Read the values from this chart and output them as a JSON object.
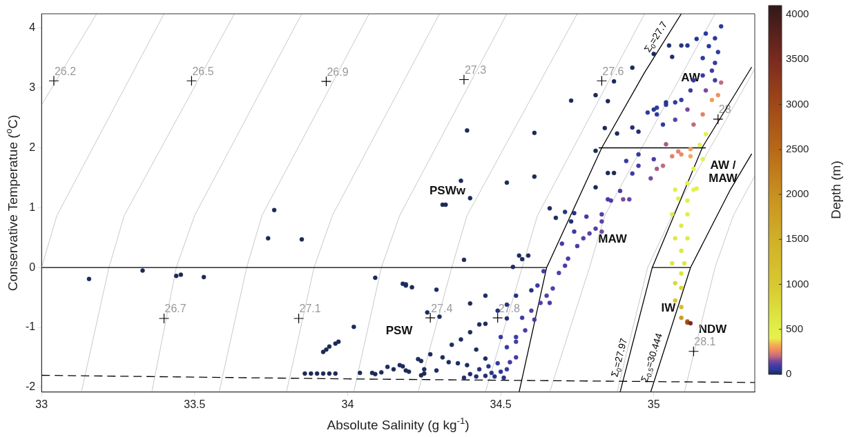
{
  "chart_data": {
    "type": "scatter",
    "xlabel": "Absolute Salinity (g kg$^{-1}$)",
    "ylabel": "Conservative Temperatue ($^{o}$C)",
    "clabel": "Depth (m)",
    "clim": [
      0,
      4100
    ],
    "cticks": [
      0,
      500,
      1000,
      1500,
      2000,
      2500,
      3000,
      3500,
      4000
    ],
    "xlim": [
      33,
      35.33
    ],
    "ylim": [
      -2.08,
      4.24
    ],
    "xticks": [
      33,
      33.5,
      34,
      34.5,
      35
    ],
    "yticks": [
      -2,
      -1,
      0,
      1,
      2,
      3,
      4
    ],
    "annotations": [
      {
        "text": "26.2",
        "x": 33.04,
        "y": 3.12
      },
      {
        "text": "26.5",
        "x": 33.49,
        "y": 3.12
      },
      {
        "text": "26.9",
        "x": 33.93,
        "y": 3.11
      },
      {
        "text": "27.3",
        "x": 34.38,
        "y": 3.14
      },
      {
        "text": "27.6",
        "x": 34.83,
        "y": 3.12
      },
      {
        "text": "28",
        "x": 35.21,
        "y": 2.48
      },
      {
        "text": "26.7",
        "x": 33.4,
        "y": -0.85
      },
      {
        "text": "27.1",
        "x": 33.84,
        "y": -0.85
      },
      {
        "text": "27.4",
        "x": 34.27,
        "y": -0.84
      },
      {
        "text": "27.8",
        "x": 34.49,
        "y": -0.84
      },
      {
        "text": "28.1",
        "x": 35.13,
        "y": -1.4
      },
      "AW",
      "PSWw",
      "MAW",
      "AW /\nMAW",
      "IW",
      "NDW",
      "PSW"
    ],
    "series": [
      {
        "type": "line",
        "color": "#c8c8c8",
        "x": [
          33.18,
          33.0
        ],
        "values": [
          4.24,
          2.72
        ]
      },
      {
        "type": "line",
        "color": "#c8c8c8",
        "x": [
          33.4,
          33.05,
          33.0
        ],
        "values": [
          4.24,
          0.87,
          0
        ]
      },
      {
        "type": "line",
        "color": "#c8c8c8",
        "x": [
          33.63,
          33.27,
          33.22,
          33.13
        ],
        "values": [
          4.24,
          0.87,
          0,
          -2.08
        ]
      },
      {
        "type": "line",
        "color": "#c8c8c8",
        "x": [
          33.85,
          33.5,
          33.44,
          33.36
        ],
        "values": [
          4.24,
          0.87,
          0,
          -2.08
        ]
      },
      {
        "type": "line",
        "color": "#c8c8c8",
        "x": [
          34.07,
          33.72,
          33.67,
          33.58
        ],
        "values": [
          4.24,
          0.87,
          0,
          -2.08
        ]
      },
      {
        "type": "line",
        "color": "#c8c8c8",
        "x": [
          34.3,
          33.95,
          33.89,
          33.8
        ],
        "values": [
          4.24,
          0.87,
          0,
          -2.08
        ]
      },
      {
        "type": "line",
        "color": "#c8c8c8",
        "x": [
          34.52,
          34.17,
          34.11,
          34.02
        ],
        "values": [
          4.24,
          0.87,
          0,
          -2.08
        ]
      },
      {
        "type": "line",
        "color": "#c8c8c8",
        "x": [
          34.75,
          34.39,
          34.34,
          34.23
        ],
        "values": [
          4.24,
          0.87,
          0,
          -2.08
        ]
      },
      {
        "type": "line",
        "color": "#c8c8c8",
        "x": [
          34.97,
          34.62,
          34.57,
          34.45
        ],
        "values": [
          4.24,
          0.87,
          0,
          -2.08
        ]
      },
      {
        "type": "line",
        "color": "#c8c8c8",
        "x": [
          35.2,
          34.84,
          34.79,
          34.66
        ],
        "values": [
          4.24,
          0.87,
          0,
          -2.08
        ]
      },
      {
        "type": "line",
        "color": "#c8c8c8",
        "x": [
          35.33,
          35.06,
          34.98,
          34.88
        ],
        "values": [
          3.32,
          0.87,
          0,
          -2.08
        ]
      },
      {
        "type": "line",
        "color": "#c8c8c8",
        "x": [
          35.33,
          35.26,
          35.2,
          35.1
        ],
        "values": [
          1.53,
          0.87,
          0,
          -2.08
        ]
      },
      {
        "type": "line",
        "name": "Σ$_{0}$=27.7",
        "color": "#000000",
        "line_style": "solid",
        "x": [
          35.09,
          34.97,
          34.83,
          34.65,
          34.56
        ],
        "values": [
          4.24,
          3.26,
          2.0,
          0,
          -2.08
        ]
      },
      {
        "type": "line",
        "name": "Σ$_{0}$=27.97",
        "color": "#000000",
        "line_style": "solid",
        "x": [
          34.89,
          34.995,
          35.16,
          35.32
        ],
        "values": [
          -2.08,
          0,
          2.02,
          3.35
        ]
      },
      {
        "type": "line",
        "name": "Σ$_{0.5}$=30.444",
        "color": "#000000",
        "line_style": "solid",
        "x": [
          34.99,
          35.12,
          35.25,
          35.32
        ],
        "values": [
          -2.08,
          0,
          1.3,
          1.9
        ]
      },
      {
        "type": "line",
        "color": "#000000",
        "line_style": "solid",
        "x": [
          34.82,
          35.17
        ],
        "values": [
          2,
          2
        ]
      },
      {
        "type": "line",
        "color": "#000000",
        "line_style": "solid",
        "x": [
          33,
          34.65
        ],
        "values": [
          0,
          0
        ]
      },
      {
        "type": "line",
        "color": "#000000",
        "line_style": "solid",
        "x": [
          34.995,
          35.12
        ],
        "values": [
          0,
          0
        ]
      },
      {
        "type": "line",
        "color": "#000000",
        "line_style": "dashed",
        "x": [
          33,
          34,
          35.33
        ],
        "values": [
          -1.8,
          -1.86,
          -1.92
        ]
      },
      {
        "type": "scatter",
        "marker": "cross",
        "color": "#000000",
        "x": [
          33.04,
          33.49,
          33.93,
          34.38,
          34.83,
          35.21,
          33.4,
          33.84,
          34.27,
          34.49,
          35.13
        ],
        "values": [
          3.12,
          3.12,
          3.11,
          3.14,
          3.12,
          2.48,
          -0.85,
          -0.85,
          -0.84,
          -0.84,
          -1.4
        ]
      },
      {
        "type": "scatter",
        "marker": "circle",
        "colors": [
          "#1c2a57",
          "#1c2a57",
          "#1c2a57",
          "#1c2a57",
          "#1c2a57",
          "#1c2a57",
          "#1c2a57",
          "#1c2a57",
          "#1c2a57",
          "#1c2a57",
          "#1c2a57",
          "#1c2a57",
          "#1c2a57",
          "#1c2a57",
          "#1c2a57",
          "#1c2a57",
          "#1c2a57",
          "#1c2a57",
          "#1c2a57",
          "#1c2a57",
          "#1c2a57",
          "#1c2a57",
          "#1c2a57",
          "#1c2a57",
          "#1c2a57",
          "#1c2a57",
          "#1c2a57",
          "#1c2a57",
          "#1c2a57",
          "#1c2a57",
          "#1c2a57",
          "#1c2a57",
          "#1c2a57",
          "#1c2a57",
          "#1c2a57",
          "#1c2a57",
          "#1c2a57",
          "#1c2a57",
          "#1c2a57",
          "#1c2a57",
          "#1c2a57",
          "#1c2a57",
          "#1c2a57",
          "#202f6e",
          "#202f6e",
          "#1c2a57",
          "#1c2a57",
          "#1c2a57",
          "#1c2a57",
          "#1c2a57",
          "#1c2a57",
          "#1c2a57",
          "#1c2a57",
          "#1c2a57",
          "#1c2a57",
          "#1d2c5f",
          "#1d2c5f",
          "#24337c",
          "#24337c",
          "#202f6e",
          "#1d2c5f",
          "#1d2c5f",
          "#1d2c5f",
          "#1d2c5f",
          "#1d2c5f",
          "#1d2c5f",
          "#1d2c5f",
          "#1d2c5f",
          "#1d2c5f",
          "#1d2c5f",
          "#1d2c5f",
          "#1d2c5f",
          "#24337c",
          "#24337c",
          "#202f6e",
          "#24337c",
          "#24337c",
          "#1d2c5f",
          "#1d2c5f",
          "#1d2c5f",
          "#1d2c5f",
          "#1d2c5f",
          "#1d2c5f",
          "#1d2c5f",
          "#1d2c5f",
          "#1d2c5f",
          "#1d2c5f",
          "#1d2c5f",
          "#1d2c5f",
          "#1d2c5f",
          "#1d2c5f",
          "#1d2c5f",
          "#1d2c5f",
          "#1d2c5f",
          "#1d2c5f",
          "#202f6e",
          "#202f6e",
          "#202f6e",
          "#24337c",
          "#27368b",
          "#24337c",
          "#27368b",
          "#2a3a9a",
          "#3d3aa2",
          "#443aa5",
          "#1f2d66",
          "#27368b",
          "#373aa0",
          "#303a9d",
          "#4a3aa8",
          "#4a3aa8",
          "#543da5",
          "#543da5",
          "#543da5",
          "#543da5",
          "#443aa5",
          "#543da5",
          "#4a3aa8",
          "#4a3aa8",
          "#4a3aa8",
          "#543da5",
          "#5d40a2",
          "#543da5",
          "#5d40a2",
          "#543da5",
          "#4a3aa8",
          "#7a4a9a",
          "#6744a0",
          "#7a4a9a",
          "#3d3aa2",
          "#443aa5",
          "#4a3aa8",
          "#3d3aa2",
          "#303a9d",
          "#373aa0",
          "#443aa5",
          "#3d3aa2",
          "#443aa5",
          "#3d3aa2",
          "#4a3aa8",
          "#4a3aa8",
          "#3d3aa2",
          "#443aa5",
          "#7a4a9a",
          "#a45d8a",
          "#c06a80",
          "#e28169",
          "#f08a60",
          "#f39d58",
          "#303a9d",
          "#303a9d",
          "#303a9d",
          "#5d40a2",
          "#7a4a9a",
          "#c06a80",
          "#e28169",
          "#f39d58",
          "#f1905d",
          "#c06a80",
          "#7a4a9a",
          "#2a3a9a",
          "#2a3a9a",
          "#2a3a9a",
          "#27368b",
          "#27368b",
          "#202f6e",
          "#202f6e",
          "#24337c",
          "#303a9d",
          "#373aa0",
          "#3d3aa2",
          "#3d3aa2",
          "#443aa5",
          "#303a9d",
          "#3d3aa2",
          "#373aa0",
          "#27368b",
          "#27368b",
          "#2a3a9a",
          "#303a9d",
          "#303a9d",
          "#303a9d",
          "#2a3a9a",
          "#303a9d",
          "#373aa0",
          "#4a3aa8",
          "#a45d8a",
          "#e28169",
          "#f4aa53",
          "#e4f04c",
          "#e3f04b",
          "#e2f04a",
          "#e2f04a",
          "#e0f048",
          "#e2f04a",
          "#e0f048",
          "#e0f048",
          "#e2f04a",
          "#dfec46",
          "#e0ee47",
          "#dee843",
          "#dfea44",
          "#dee441",
          "#dee441",
          "#dbd83a",
          "#dad437",
          "#d8c830",
          "#d5be2d",
          "#cb9d23",
          "#b86818",
          "#a04818",
          "#7a2a20",
          "#dfeb45",
          "#dee642",
          "#e5f04d",
          "#dde03e"
        ],
        "x": [
          33.155,
          33.33,
          33.44,
          33.455,
          33.53,
          33.74,
          33.76,
          33.85,
          34.09,
          34.19,
          34.21,
          34.02,
          33.92,
          33.93,
          33.94,
          33.96,
          33.97,
          33.86,
          33.88,
          33.9,
          33.92,
          33.94,
          33.96,
          34.04,
          34.08,
          34.09,
          34.11,
          34.15,
          34.18,
          34.19,
          34.25,
          34.24,
          34.24,
          34.39,
          34.61,
          34.73,
          34.81,
          34.85,
          34.87,
          34.93,
          35.0,
          34.84,
          34.88,
          34.93,
          34.95,
          34.81,
          34.37,
          34.52,
          34.61,
          34.4,
          34.85,
          34.87,
          34.81,
          34.32,
          34.31,
          34.66,
          34.68,
          34.71,
          34.74,
          34.73,
          34.38,
          34.56,
          34.57,
          34.59,
          34.54,
          34.18,
          34.19,
          34.29,
          34.45,
          34.4,
          34.3,
          34.26,
          34.6,
          34.55,
          34.52,
          34.49,
          34.52,
          34.31,
          34.34,
          34.37,
          34.4,
          34.43,
          34.45,
          34.27,
          34.23,
          34.13,
          34.17,
          34.2,
          34.25,
          34.29,
          34.33,
          34.36,
          34.39,
          34.42,
          34.45,
          34.38,
          34.42,
          34.45,
          34.48,
          34.51,
          34.43,
          34.46,
          34.5,
          34.53,
          34.55,
          34.4,
          34.47,
          34.52,
          34.49,
          34.55,
          34.58,
          34.6,
          34.63,
          34.65,
          34.67,
          34.64,
          34.69,
          34.71,
          34.72,
          34.75,
          34.77,
          34.79,
          34.81,
          34.83,
          34.83,
          34.85,
          34.9,
          34.92,
          34.83,
          34.55,
          34.61,
          34.66,
          34.57,
          34.5,
          34.52,
          34.7,
          34.74,
          34.78,
          34.62,
          34.86,
          34.89,
          34.93,
          34.95,
          34.99,
          35.01,
          35.03,
          35.06,
          35.09,
          35.12,
          34.98,
          35.01,
          35.04,
          35.07,
          35.11,
          35.13,
          35.16,
          35.19,
          35.21,
          35.22,
          35.17,
          35.22,
          35.17,
          35.2,
          35.14,
          35.11,
          35.05,
          35.06,
          35.09,
          35.16,
          35.2,
          35.16,
          35.19,
          35.2,
          35.13,
          35.12,
          35.09,
          35.04,
          35.0,
          35.01,
          35.03,
          35.07,
          35.21,
          35.18,
          34.95,
          34.91,
          35.0,
          35.04,
          35.08,
          35.12,
          35.17,
          35.16,
          35.13,
          35.11,
          35.08,
          35.14,
          35.11,
          35.07,
          35.13,
          35.06,
          35.11,
          35.07,
          35.11,
          35.06,
          35.1,
          35.07,
          35.09,
          35.07,
          35.09,
          35.09,
          35.11,
          35.11,
          35.12,
          35.09,
          35.09,
          35.15,
          35.09
        ],
        "values": [
          -0.19,
          -0.05,
          -0.14,
          -0.12,
          -0.16,
          0.49,
          0.96,
          0.47,
          -0.17,
          -0.3,
          -0.33,
          -0.99,
          -1.41,
          -1.37,
          -1.32,
          -1.27,
          -1.24,
          -1.77,
          -1.77,
          -1.77,
          -1.77,
          -1.77,
          -1.77,
          -1.76,
          -1.76,
          -1.78,
          -1.75,
          -1.7,
          -1.65,
          -1.72,
          -1.77,
          -1.56,
          -1.8,
          2.29,
          2.25,
          2.79,
          2.88,
          2.78,
          3.11,
          3.34,
          3.57,
          2.33,
          2.24,
          2.34,
          2.27,
          1.95,
          1.45,
          1.42,
          1.52,
          1.16,
          1.58,
          1.58,
          1.34,
          1.05,
          1.05,
          0.99,
          0.83,
          0.93,
          0.91,
          0.77,
          0.13,
          0.2,
          0.14,
          0.2,
          0.01,
          -0.27,
          -0.28,
          -0.37,
          -0.47,
          -0.6,
          -0.82,
          -0.75,
          -0.38,
          -0.47,
          -0.85,
          -0.72,
          -0.62,
          -1.5,
          -1.29,
          -1.2,
          -1.08,
          -0.95,
          -0.94,
          -1.45,
          -1.53,
          -1.66,
          -1.63,
          -1.74,
          -1.7,
          -1.72,
          -1.58,
          -1.6,
          -1.63,
          -1.37,
          -1.52,
          -1.84,
          -1.82,
          -1.81,
          -1.82,
          -1.84,
          -1.7,
          -1.65,
          -1.74,
          -1.58,
          -1.5,
          -1.78,
          -1.76,
          -1.7,
          -1.6,
          -1.24,
          -1.05,
          -0.72,
          -0.59,
          -0.47,
          -0.35,
          -0.06,
          -0.09,
          0.03,
          0.15,
          0.36,
          0.49,
          0.57,
          0.65,
          0.77,
          0.89,
          1.14,
          1.14,
          1.14,
          0.6,
          -1.16,
          -0.87,
          -0.59,
          -0.84,
          -1.16,
          -1.33,
          0.4,
          0.6,
          0.85,
          -0.3,
          1.12,
          1.28,
          1.57,
          1.7,
          1.49,
          1.65,
          1.7,
          1.86,
          1.89,
          1.98,
          2.59,
          2.67,
          2.72,
          2.47,
          2.64,
          2.39,
          2.56,
          2.8,
          2.88,
          3.09,
          2.96,
          4.03,
          3.91,
          3.83,
          3.82,
          3.71,
          3.71,
          3.52,
          3.71,
          3.5,
          3.42,
          3.21,
          3.29,
          3.13,
          3.13,
          2.96,
          2.8,
          2.76,
          2.64,
          2.56,
          2.39,
          2.76,
          3.6,
          3.7,
          1.89,
          1.78,
          1.81,
          2.06,
          1.94,
          1.86,
          2.23,
          1.81,
          1.65,
          1.41,
          1.15,
          1.32,
          1.12,
          1.3,
          1.3,
          0.89,
          0.89,
          0.49,
          0.49,
          0.07,
          0.07,
          -0.26,
          -0.34,
          -0.55,
          -0.66,
          -0.84,
          -0.9,
          -0.92,
          -0.93,
          0.7,
          0.28,
          2.05,
          -0.1
        ],
        "cvalues": [
          5,
          5,
          5,
          5,
          5,
          5,
          5,
          5,
          5,
          5,
          5,
          5,
          5,
          5,
          5,
          5,
          5,
          5,
          5,
          5,
          5,
          5,
          5,
          5,
          5,
          5,
          5,
          5,
          5,
          5,
          5,
          5,
          5,
          5,
          5,
          5,
          5,
          5,
          5,
          5,
          5,
          5,
          5,
          20,
          20,
          5,
          5,
          5,
          5,
          5,
          5,
          5,
          5,
          5,
          5,
          10,
          10,
          30,
          30,
          20,
          10,
          10,
          10,
          10,
          10,
          10,
          10,
          10,
          10,
          10,
          10,
          10,
          30,
          30,
          20,
          30,
          30,
          10,
          10,
          10,
          10,
          10,
          10,
          10,
          10,
          10,
          10,
          10,
          10,
          10,
          10,
          10,
          10,
          10,
          10,
          20,
          20,
          20,
          30,
          40,
          30,
          40,
          50,
          80,
          90,
          15,
          40,
          70,
          60,
          100,
          100,
          110,
          110,
          110,
          110,
          90,
          110,
          100,
          100,
          100,
          110,
          120,
          110,
          120,
          110,
          100,
          150,
          130,
          150,
          80,
          90,
          100,
          80,
          60,
          70,
          90,
          80,
          90,
          80,
          100,
          100,
          80,
          90,
          150,
          180,
          200,
          250,
          270,
          300,
          60,
          60,
          60,
          120,
          150,
          200,
          250,
          300,
          280,
          200,
          150,
          50,
          50,
          50,
          40,
          40,
          20,
          20,
          30,
          60,
          70,
          80,
          80,
          90,
          60,
          80,
          70,
          40,
          40,
          50,
          60,
          60,
          60,
          50,
          60,
          70,
          100,
          180,
          250,
          320,
          450,
          460,
          470,
          480,
          500,
          480,
          500,
          500,
          480,
          550,
          520,
          600,
          580,
          650,
          650,
          800,
          850,
          1000,
          1200,
          1800,
          2500,
          3000,
          3500,
          560,
          620,
          440,
          700
        ]
      }
    ]
  }
}
